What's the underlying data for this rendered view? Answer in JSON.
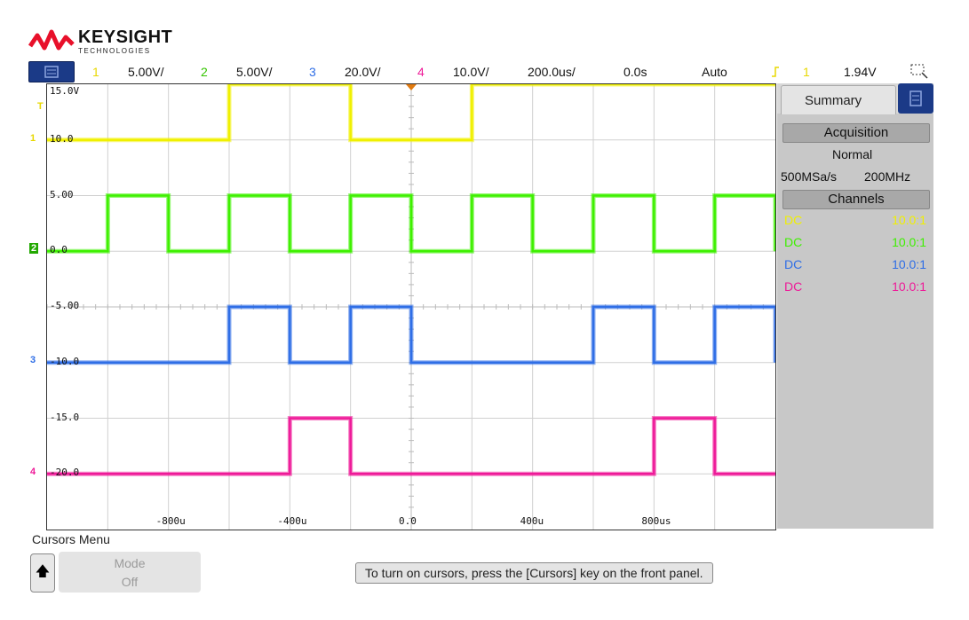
{
  "brand": {
    "name": "KEYSIGHT",
    "sub": "TECHNOLOGIES"
  },
  "colors": {
    "ch1": "#f0f000",
    "ch2": "#3ef000",
    "ch3": "#2f6ee6",
    "ch4": "#ee1a98",
    "panel": "#c8c8c8",
    "accent": "#1b3a87"
  },
  "status_bar": {
    "menu_icon": "menu-icon",
    "ch1_num": "1",
    "ch1_scale": "5.00V/",
    "ch2_num": "2",
    "ch2_scale": "5.00V/",
    "ch3_num": "3",
    "ch3_scale": "20.0V/",
    "ch4_num": "4",
    "ch4_scale": "10.0V/",
    "timebase": "200.0us/",
    "delay": "0.0s",
    "trigger_mode": "Auto",
    "trigger_icon": "trigger-edge-icon",
    "trigger_source": "1",
    "trigger_level": "1.94V",
    "select_icon": "select-zoom-icon"
  },
  "graticule": {
    "y_labels": [
      "15.0V",
      "10.0",
      "5.00",
      "0.0",
      "-5.00",
      "-10.0",
      "-15.0",
      "-20.0"
    ],
    "x_labels": [
      "-800u",
      "-400u",
      "0.0",
      "400u",
      "800us"
    ]
  },
  "markers": {
    "ch1": "1",
    "ch2": "2",
    "ch3": "3",
    "ch4": "4",
    "trig": "T"
  },
  "waveforms": {
    "period_divs": 2,
    "ch1": {
      "low_v": 10.0,
      "high_v": 15.0,
      "edges_divs": [
        3,
        5,
        7
      ],
      "start_state": 0
    },
    "ch2": {
      "low_v": 0.0,
      "high_v": 5.0,
      "edges_divs": [
        1,
        2,
        3,
        4,
        5,
        6,
        7,
        8,
        9,
        10,
        11,
        12
      ],
      "start_state": 0
    },
    "ch3": {
      "low_v": -10.0,
      "high_v": -5.0,
      "edges_divs": [
        3,
        4,
        5,
        6,
        9,
        10,
        11,
        12
      ],
      "start_state": 0
    },
    "ch4": {
      "low_v": -20.0,
      "high_v": -15.0,
      "edges_divs": [
        4,
        5,
        10,
        11
      ],
      "start_state": 0
    }
  },
  "side_panel": {
    "tab_label": "Summary",
    "acquisition_header": "Acquisition",
    "acq_mode": "Normal",
    "sample_rate": "500MSa/s",
    "bandwidth": "200MHz",
    "channels_header": "Channels",
    "channels": [
      {
        "coupling": "DC",
        "probe": "10.0:1"
      },
      {
        "coupling": "DC",
        "probe": "10.0:1"
      },
      {
        "coupling": "DC",
        "probe": "10.0:1"
      },
      {
        "coupling": "DC",
        "probe": "10.0:1"
      }
    ]
  },
  "bottom": {
    "menu_title": "Cursors Menu",
    "mode_label": "Mode",
    "mode_value": "Off",
    "hint": "To turn on cursors, press the [Cursors] key on the front panel."
  }
}
